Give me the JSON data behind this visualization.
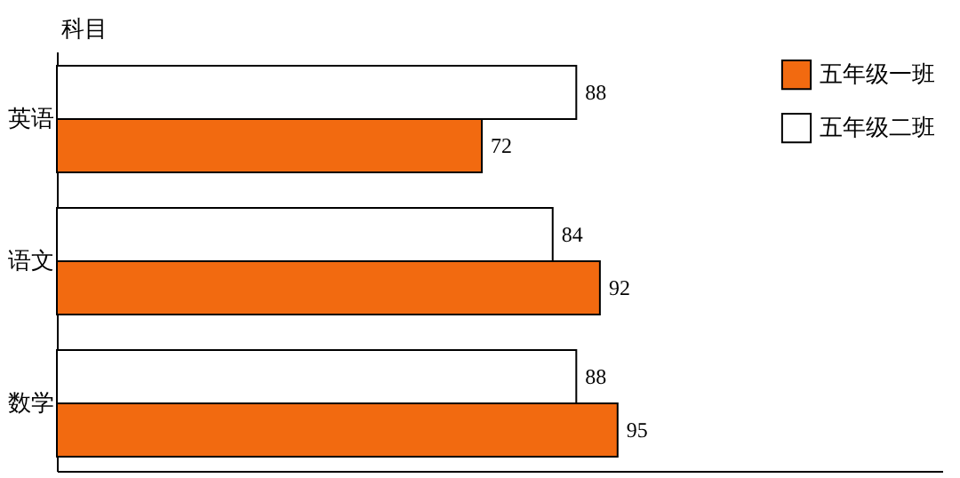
{
  "chart_data": {
    "type": "bar",
    "orientation": "horizontal",
    "ylabel": "科目",
    "categories": [
      "英语",
      "语文",
      "数学"
    ],
    "series": [
      {
        "name": "五年级一班",
        "color": "#f26a10",
        "values": [
          72,
          92,
          95
        ]
      },
      {
        "name": "五年级二班",
        "color": "#ffffff",
        "values": [
          88,
          84,
          88
        ]
      }
    ],
    "xlim": [
      0,
      150
    ],
    "tick_labels": "y",
    "data_labels": true,
    "legend": "top right"
  }
}
